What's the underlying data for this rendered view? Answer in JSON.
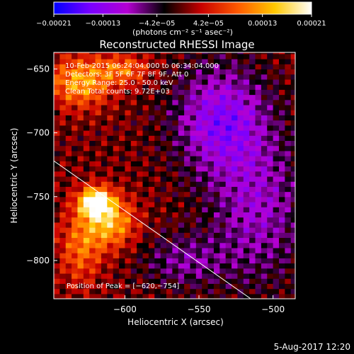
{
  "chart_data": {
    "type": "heatmap",
    "title": "Reconstructed RHESSI Image",
    "xlabel": "Heliocentric X (arcsec)",
    "ylabel": "Heliocentric Y (arcsec)",
    "xlim": [
      -648,
      -485
    ],
    "ylim": [
      -830,
      -637
    ],
    "x_ticks": [
      -600,
      -550,
      -500
    ],
    "x_tick_labels": [
      "−600",
      "−550",
      "−500"
    ],
    "y_ticks": [
      -650,
      -700,
      -750,
      -800
    ],
    "y_tick_labels": [
      "−650",
      "−700",
      "−750",
      "−800"
    ],
    "colorbar": {
      "min": -0.00021,
      "max": 0.00021,
      "tick_values": [
        -0.00021,
        -0.00013,
        -4.2e-05,
        4.2e-05,
        0.00013,
        0.00021
      ],
      "tick_labels": [
        "−0.00021",
        "−0.00013",
        "−4.2e−05",
        "4.2e−05",
        "0.00013",
        "0.00021"
      ],
      "units_label": "(photons cm⁻² s⁻¹ asec⁻²)",
      "colormap": [
        "#0000ff",
        "#7a00ff",
        "#b400d2",
        "#000000",
        "#c80000",
        "#ff5a00",
        "#ffc800",
        "#ffffff"
      ]
    },
    "annotations": [
      "10-Feb-2015 06:24:04.000 to 06:34:04.000",
      "Detectors: 3F 5F 6F 7F 8F 9F, Att 0",
      "Energy Range: 25.0 - 50.0 keV",
      "Clean    Total counts: 9.72E+03"
    ],
    "peak_label": "Position of Peak = [−620,−754]",
    "peak": [
      -620,
      -754
    ],
    "limb_line": [
      [
        -648,
        -722
      ],
      [
        -515,
        -830
      ]
    ],
    "sources": [
      {
        "x": -620,
        "y": -754,
        "sx": 8,
        "sy": 8,
        "amp": 0.00021
      },
      {
        "x": -610,
        "y": -770,
        "sx": 12,
        "sy": 14,
        "amp": 0.00014
      },
      {
        "x": -630,
        "y": -790,
        "sx": 10,
        "sy": 20,
        "amp": 9e-05
      },
      {
        "x": -630,
        "y": -660,
        "sx": 15,
        "sy": 14,
        "amp": 0.00013
      },
      {
        "x": -600,
        "y": -650,
        "sx": 12,
        "sy": 8,
        "amp": 9e-05
      },
      {
        "x": -535,
        "y": -690,
        "sx": 22,
        "sy": 30,
        "amp": -0.00013
      },
      {
        "x": -510,
        "y": -760,
        "sx": 22,
        "sy": 40,
        "amp": -9e-05
      },
      {
        "x": -560,
        "y": -800,
        "sx": 20,
        "sy": 15,
        "amp": -7e-05
      }
    ]
  },
  "footer": {
    "timestamp": "5-Aug-2017 12:20"
  }
}
